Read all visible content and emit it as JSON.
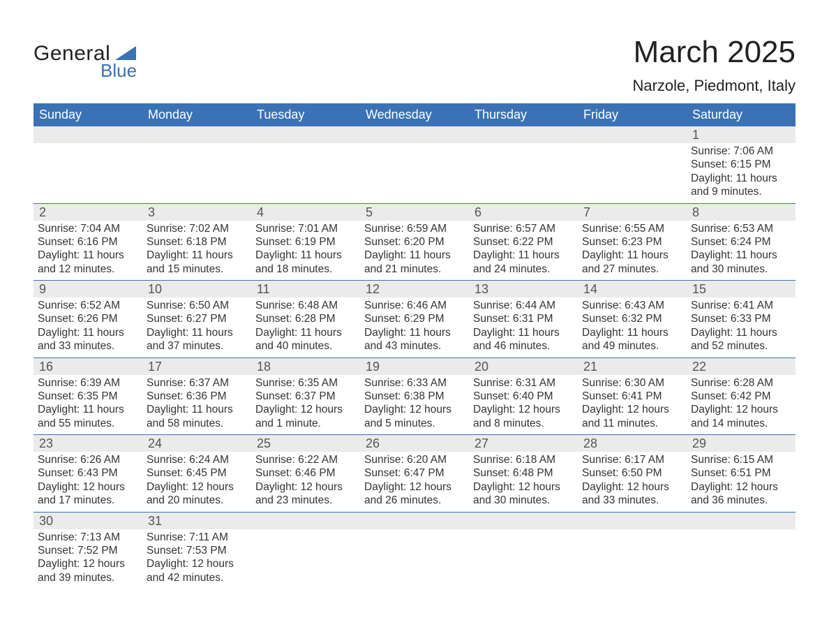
{
  "brand": {
    "top": "General",
    "bottom": "Blue",
    "triangle_color": "#3a72b5"
  },
  "header": {
    "month_title": "March 2025",
    "location": "Narzole, Piedmont, Italy"
  },
  "styling": {
    "header_bg": "#3a72b5",
    "header_fg": "#ffffff",
    "row_divider": "#3a72b5",
    "daynum_bg": "#ebebeb",
    "daynum_fg": "#555555",
    "body_text": "#333333",
    "page_bg": "#ffffff",
    "title_fontsize_pt": 33,
    "location_fontsize_pt": 17,
    "weekday_fontsize_pt": 14,
    "daynum_fontsize_pt": 14,
    "body_fontsize_pt": 12
  },
  "weekdays": [
    "Sunday",
    "Monday",
    "Tuesday",
    "Wednesday",
    "Thursday",
    "Friday",
    "Saturday"
  ],
  "weeks": [
    [
      null,
      null,
      null,
      null,
      null,
      null,
      {
        "day": "1",
        "sunrise": "Sunrise: 7:06 AM",
        "sunset": "Sunset: 6:15 PM",
        "daylight1": "Daylight: 11 hours",
        "daylight2": "and 9 minutes."
      }
    ],
    [
      {
        "day": "2",
        "sunrise": "Sunrise: 7:04 AM",
        "sunset": "Sunset: 6:16 PM",
        "daylight1": "Daylight: 11 hours",
        "daylight2": "and 12 minutes."
      },
      {
        "day": "3",
        "sunrise": "Sunrise: 7:02 AM",
        "sunset": "Sunset: 6:18 PM",
        "daylight1": "Daylight: 11 hours",
        "daylight2": "and 15 minutes."
      },
      {
        "day": "4",
        "sunrise": "Sunrise: 7:01 AM",
        "sunset": "Sunset: 6:19 PM",
        "daylight1": "Daylight: 11 hours",
        "daylight2": "and 18 minutes."
      },
      {
        "day": "5",
        "sunrise": "Sunrise: 6:59 AM",
        "sunset": "Sunset: 6:20 PM",
        "daylight1": "Daylight: 11 hours",
        "daylight2": "and 21 minutes."
      },
      {
        "day": "6",
        "sunrise": "Sunrise: 6:57 AM",
        "sunset": "Sunset: 6:22 PM",
        "daylight1": "Daylight: 11 hours",
        "daylight2": "and 24 minutes."
      },
      {
        "day": "7",
        "sunrise": "Sunrise: 6:55 AM",
        "sunset": "Sunset: 6:23 PM",
        "daylight1": "Daylight: 11 hours",
        "daylight2": "and 27 minutes."
      },
      {
        "day": "8",
        "sunrise": "Sunrise: 6:53 AM",
        "sunset": "Sunset: 6:24 PM",
        "daylight1": "Daylight: 11 hours",
        "daylight2": "and 30 minutes."
      }
    ],
    [
      {
        "day": "9",
        "sunrise": "Sunrise: 6:52 AM",
        "sunset": "Sunset: 6:26 PM",
        "daylight1": "Daylight: 11 hours",
        "daylight2": "and 33 minutes."
      },
      {
        "day": "10",
        "sunrise": "Sunrise: 6:50 AM",
        "sunset": "Sunset: 6:27 PM",
        "daylight1": "Daylight: 11 hours",
        "daylight2": "and 37 minutes."
      },
      {
        "day": "11",
        "sunrise": "Sunrise: 6:48 AM",
        "sunset": "Sunset: 6:28 PM",
        "daylight1": "Daylight: 11 hours",
        "daylight2": "and 40 minutes."
      },
      {
        "day": "12",
        "sunrise": "Sunrise: 6:46 AM",
        "sunset": "Sunset: 6:29 PM",
        "daylight1": "Daylight: 11 hours",
        "daylight2": "and 43 minutes."
      },
      {
        "day": "13",
        "sunrise": "Sunrise: 6:44 AM",
        "sunset": "Sunset: 6:31 PM",
        "daylight1": "Daylight: 11 hours",
        "daylight2": "and 46 minutes."
      },
      {
        "day": "14",
        "sunrise": "Sunrise: 6:43 AM",
        "sunset": "Sunset: 6:32 PM",
        "daylight1": "Daylight: 11 hours",
        "daylight2": "and 49 minutes."
      },
      {
        "day": "15",
        "sunrise": "Sunrise: 6:41 AM",
        "sunset": "Sunset: 6:33 PM",
        "daylight1": "Daylight: 11 hours",
        "daylight2": "and 52 minutes."
      }
    ],
    [
      {
        "day": "16",
        "sunrise": "Sunrise: 6:39 AM",
        "sunset": "Sunset: 6:35 PM",
        "daylight1": "Daylight: 11 hours",
        "daylight2": "and 55 minutes."
      },
      {
        "day": "17",
        "sunrise": "Sunrise: 6:37 AM",
        "sunset": "Sunset: 6:36 PM",
        "daylight1": "Daylight: 11 hours",
        "daylight2": "and 58 minutes."
      },
      {
        "day": "18",
        "sunrise": "Sunrise: 6:35 AM",
        "sunset": "Sunset: 6:37 PM",
        "daylight1": "Daylight: 12 hours",
        "daylight2": "and 1 minute."
      },
      {
        "day": "19",
        "sunrise": "Sunrise: 6:33 AM",
        "sunset": "Sunset: 6:38 PM",
        "daylight1": "Daylight: 12 hours",
        "daylight2": "and 5 minutes."
      },
      {
        "day": "20",
        "sunrise": "Sunrise: 6:31 AM",
        "sunset": "Sunset: 6:40 PM",
        "daylight1": "Daylight: 12 hours",
        "daylight2": "and 8 minutes."
      },
      {
        "day": "21",
        "sunrise": "Sunrise: 6:30 AM",
        "sunset": "Sunset: 6:41 PM",
        "daylight1": "Daylight: 12 hours",
        "daylight2": "and 11 minutes."
      },
      {
        "day": "22",
        "sunrise": "Sunrise: 6:28 AM",
        "sunset": "Sunset: 6:42 PM",
        "daylight1": "Daylight: 12 hours",
        "daylight2": "and 14 minutes."
      }
    ],
    [
      {
        "day": "23",
        "sunrise": "Sunrise: 6:26 AM",
        "sunset": "Sunset: 6:43 PM",
        "daylight1": "Daylight: 12 hours",
        "daylight2": "and 17 minutes."
      },
      {
        "day": "24",
        "sunrise": "Sunrise: 6:24 AM",
        "sunset": "Sunset: 6:45 PM",
        "daylight1": "Daylight: 12 hours",
        "daylight2": "and 20 minutes."
      },
      {
        "day": "25",
        "sunrise": "Sunrise: 6:22 AM",
        "sunset": "Sunset: 6:46 PM",
        "daylight1": "Daylight: 12 hours",
        "daylight2": "and 23 minutes."
      },
      {
        "day": "26",
        "sunrise": "Sunrise: 6:20 AM",
        "sunset": "Sunset: 6:47 PM",
        "daylight1": "Daylight: 12 hours",
        "daylight2": "and 26 minutes."
      },
      {
        "day": "27",
        "sunrise": "Sunrise: 6:18 AM",
        "sunset": "Sunset: 6:48 PM",
        "daylight1": "Daylight: 12 hours",
        "daylight2": "and 30 minutes."
      },
      {
        "day": "28",
        "sunrise": "Sunrise: 6:17 AM",
        "sunset": "Sunset: 6:50 PM",
        "daylight1": "Daylight: 12 hours",
        "daylight2": "and 33 minutes."
      },
      {
        "day": "29",
        "sunrise": "Sunrise: 6:15 AM",
        "sunset": "Sunset: 6:51 PM",
        "daylight1": "Daylight: 12 hours",
        "daylight2": "and 36 minutes."
      }
    ],
    [
      {
        "day": "30",
        "sunrise": "Sunrise: 7:13 AM",
        "sunset": "Sunset: 7:52 PM",
        "daylight1": "Daylight: 12 hours",
        "daylight2": "and 39 minutes."
      },
      {
        "day": "31",
        "sunrise": "Sunrise: 7:11 AM",
        "sunset": "Sunset: 7:53 PM",
        "daylight1": "Daylight: 12 hours",
        "daylight2": "and 42 minutes."
      },
      null,
      null,
      null,
      null,
      null
    ]
  ]
}
